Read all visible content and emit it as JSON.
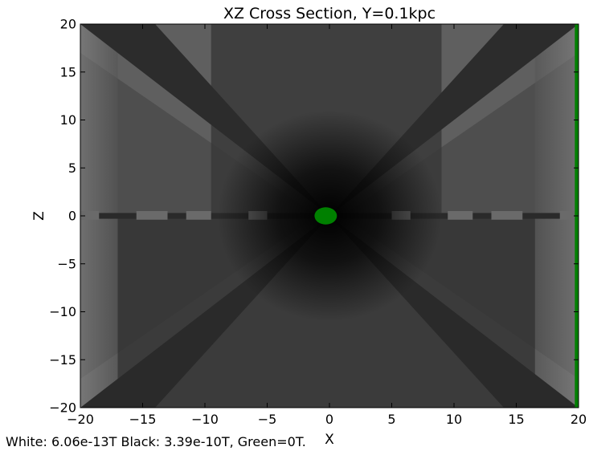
{
  "chart_data": {
    "type": "heatmap",
    "title": "XZ Cross Section, Y=0.1kpc",
    "xlabel": "X",
    "ylabel": "Z",
    "xlim": [
      -20,
      20
    ],
    "ylim": [
      -20,
      20
    ],
    "x_ticks": [
      -20,
      -15,
      -10,
      -5,
      0,
      5,
      10,
      15,
      20
    ],
    "x_tick_labels": [
      "−20",
      "−15",
      "−10",
      "−5",
      "0",
      "5",
      "10",
      "15",
      "20"
    ],
    "y_ticks": [
      -20,
      -15,
      -10,
      -5,
      0,
      5,
      10,
      15,
      20
    ],
    "y_tick_labels": [
      "−20",
      "−15",
      "−10",
      "−5",
      "0",
      "5",
      "10",
      "15",
      "20"
    ],
    "colormap": {
      "white_value": "6.06e-13T",
      "black_value": "3.39e-10T",
      "green_value": "0T",
      "green_color": "#008000"
    },
    "caption": "White: 6.06e-13T  Black: 3.39e-10T, Green=0T.",
    "features": {
      "central_green_blob": {
        "x": -0.3,
        "z": 0,
        "rx": 0.9,
        "rz": 0.9
      },
      "right_edge_green_strip": {
        "x_from": 19.7,
        "x_to": 20
      },
      "dark_cross_lines_through_origin": true,
      "upper_box": {
        "x_from": -9.5,
        "x_to": 9,
        "z_from": 0.3,
        "z_to": 20
      },
      "lower_box": {
        "x_from": -17,
        "x_to": 16.5,
        "z_from": -20,
        "z_to": -0.2
      }
    }
  }
}
